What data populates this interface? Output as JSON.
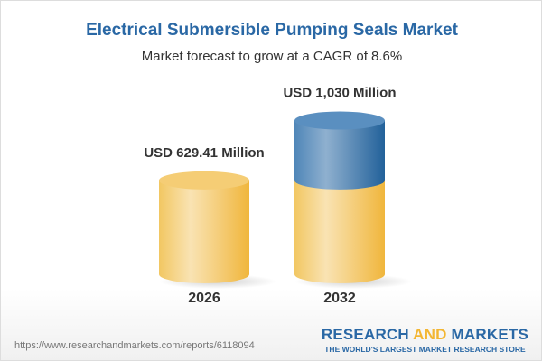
{
  "title": "Electrical Submersible Pumping Seals Market",
  "subtitle": "Market forecast to grow at a CAGR of 8.6%",
  "url": "https://www.researchandmarkets.com/reports/6118094",
  "logo": {
    "part1": "RESEARCH ",
    "part2": "AND",
    "part3": " MARKETS",
    "tagline": "THE WORLD'S LARGEST MARKET RESEARCH STORE"
  },
  "colors": {
    "title": "#2a68a5",
    "base": "#f3c35a",
    "growth": "#3f7cb0"
  },
  "chart_data": {
    "type": "bar",
    "style": "3d-cylinder",
    "categories": [
      "2026",
      "2032"
    ],
    "values": [
      629.41,
      1030
    ],
    "data_labels": [
      "USD 629.41 Million",
      "USD 1,030 Million"
    ],
    "unit": "USD Million"
  }
}
